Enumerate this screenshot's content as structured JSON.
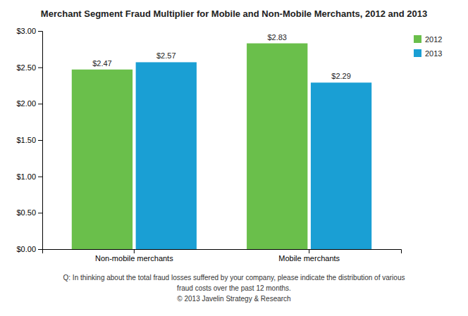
{
  "chart_data": {
    "type": "bar",
    "title": "Merchant Segment Fraud Multiplier for Mobile and Non-Mobile Merchants, 2012 and 2013",
    "categories": [
      "Non-mobile merchants",
      "Mobile merchants"
    ],
    "series": [
      {
        "name": "2012",
        "color": "#6abf4b",
        "values": [
          2.47,
          2.83
        ],
        "value_labels": [
          "$2.47",
          "$2.83"
        ]
      },
      {
        "name": "2013",
        "color": "#1a9fd4",
        "values": [
          2.57,
          2.29
        ],
        "value_labels": [
          "$2.57",
          "$2.29"
        ]
      }
    ],
    "ylim": [
      0,
      3.0
    ],
    "yticks": [
      {
        "value": 0.0,
        "label": "$0.00"
      },
      {
        "value": 0.5,
        "label": "$0.50"
      },
      {
        "value": 1.0,
        "label": "$1.00"
      },
      {
        "value": 1.5,
        "label": "$1.50"
      },
      {
        "value": 2.0,
        "label": "$2.00"
      },
      {
        "value": 2.5,
        "label": "$2.50"
      },
      {
        "value": 3.0,
        "label": "$3.00"
      }
    ],
    "grid": false,
    "legend": "upper right",
    "data_labels": true,
    "annotations": [
      "Q: In thinking about the total fraud losses suffered by your company, please indicate the distribution of various",
      "fraud costs over the past 12 months.",
      "© 2013 Javelin Strategy & Research"
    ]
  }
}
